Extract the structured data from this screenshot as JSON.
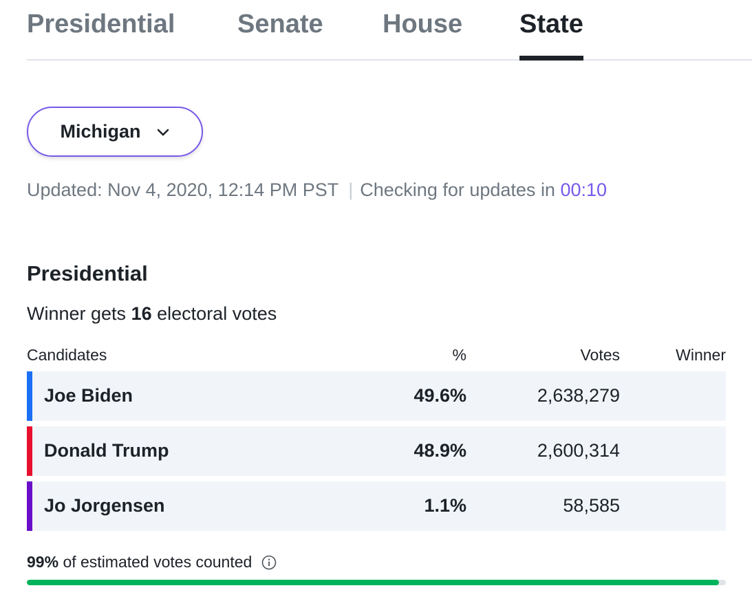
{
  "tabs": [
    {
      "label": "Presidential"
    },
    {
      "label": "Senate"
    },
    {
      "label": "House"
    },
    {
      "label": "State",
      "active": true
    }
  ],
  "state_selector": {
    "value": "Michigan",
    "icon": "chevron-down-icon"
  },
  "update_status": {
    "updated_label": "Updated: Nov 4, 2020, 12:14 PM PST",
    "separator": "|",
    "checking_label": "Checking for updates in",
    "countdown": "00:10"
  },
  "race": {
    "title": "Presidential",
    "electoral_prefix": "Winner gets",
    "electoral_votes": "16",
    "electoral_suffix": "electoral votes",
    "columns": {
      "candidates": "Candidates",
      "pct": "%",
      "votes": "Votes",
      "winner": "Winner"
    },
    "candidates": [
      {
        "name": "Joe Biden",
        "pct": "49.6%",
        "votes": "2,638,279",
        "color": "#1a6ff5"
      },
      {
        "name": "Donald Trump",
        "pct": "48.9%",
        "votes": "2,600,314",
        "color": "#e8102e"
      },
      {
        "name": "Jo Jorgensen",
        "pct": "1.1%",
        "votes": "58,585",
        "color": "#6a0fc9"
      }
    ]
  },
  "counted": {
    "percent": "99%",
    "label": "of estimated votes counted",
    "progress_fraction": 0.99,
    "bar_color": "#00b35a"
  },
  "colors": {
    "accent": "#7759ea"
  }
}
